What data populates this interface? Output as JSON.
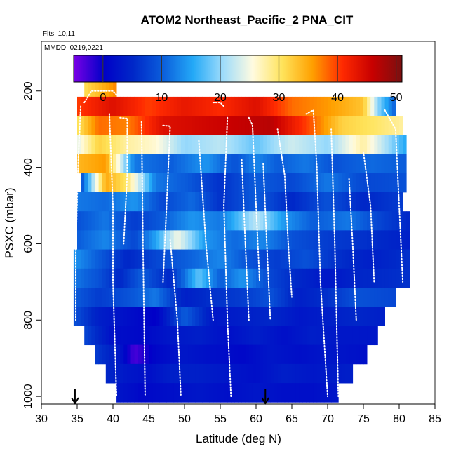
{
  "chart_data": {
    "type": "heatmap",
    "title": "ATOM2 Northeast_Pacific_2 PNA_CIT",
    "flights_note": "Flts: 10,11",
    "dates_note": "MMDD: 0219,0221",
    "xlabel": "Latitude (deg N)",
    "ylabel": "PSXC (mbar)",
    "xlim": [
      30,
      85
    ],
    "ylim": [
      1020,
      70
    ],
    "y_reversed": true,
    "x_ticks": [
      30,
      35,
      40,
      45,
      50,
      55,
      60,
      65,
      70,
      75,
      80,
      85
    ],
    "y_ticks": [
      200,
      400,
      600,
      800,
      1000
    ],
    "colorbar": {
      "range": [
        -5,
        51
      ],
      "ticks": [
        0,
        10,
        20,
        30,
        40,
        50
      ],
      "colors": [
        "#7a00e6",
        "#0000c8",
        "#0028c8",
        "#0b5fdc",
        "#24a9f7",
        "#9edcfb",
        "#fffbe0",
        "#ffe35a",
        "#ffa000",
        "#ff2a00",
        "#c80000",
        "#7a1010"
      ]
    },
    "bin_pressures": [
      190,
      240,
      290,
      340,
      390,
      440,
      490,
      540,
      590,
      640,
      690,
      740,
      790,
      840,
      890,
      940,
      990
    ],
    "bin_extents": [
      [
        36,
        40.5
      ],
      [
        35,
        79.5
      ],
      [
        35,
        80.5
      ],
      [
        35,
        81
      ],
      [
        35,
        81
      ],
      [
        35.5,
        81
      ],
      [
        35,
        80.5
      ],
      [
        35,
        81.5
      ],
      [
        35,
        81.5
      ],
      [
        34.5,
        81.5
      ],
      [
        34.5,
        81.5
      ],
      [
        34.5,
        79.5
      ],
      [
        34.5,
        78
      ],
      [
        36,
        77
      ],
      [
        37.5,
        75.5
      ],
      [
        39,
        73.5
      ],
      [
        40.5,
        71.5
      ]
    ],
    "bin_profiles": [
      [
        [
          36,
          31
        ],
        [
          40.5,
          37
        ]
      ],
      [
        [
          35,
          40
        ],
        [
          40,
          44
        ],
        [
          45,
          40
        ],
        [
          50,
          43
        ],
        [
          55,
          41
        ],
        [
          60,
          44
        ],
        [
          65,
          38
        ],
        [
          70,
          36
        ],
        [
          75,
          33
        ],
        [
          77,
          20
        ],
        [
          79.5,
          10
        ]
      ],
      [
        [
          35,
          30
        ],
        [
          38,
          38
        ],
        [
          42,
          37
        ],
        [
          47,
          44
        ],
        [
          52,
          45
        ],
        [
          57,
          46
        ],
        [
          62,
          47
        ],
        [
          67,
          40
        ],
        [
          72,
          32
        ],
        [
          77,
          30
        ],
        [
          80.5,
          28
        ]
      ],
      [
        [
          35,
          24
        ],
        [
          38,
          32
        ],
        [
          42,
          28
        ],
        [
          46,
          26
        ],
        [
          50,
          20
        ],
        [
          55,
          22
        ],
        [
          60,
          18
        ],
        [
          65,
          23
        ],
        [
          70,
          20
        ],
        [
          75,
          28
        ],
        [
          81,
          15
        ]
      ],
      [
        [
          35,
          34
        ],
        [
          39,
          36
        ],
        [
          43,
          12
        ],
        [
          48,
          10
        ],
        [
          53,
          14
        ],
        [
          57,
          9
        ],
        [
          60,
          13
        ],
        [
          63,
          10
        ],
        [
          67,
          12
        ],
        [
          71,
          9
        ],
        [
          76,
          11
        ],
        [
          81,
          10
        ]
      ],
      [
        [
          35.5,
          8
        ],
        [
          39,
          35
        ],
        [
          42,
          30
        ],
        [
          46,
          12
        ],
        [
          50,
          10
        ],
        [
          55,
          6
        ],
        [
          60,
          10
        ],
        [
          65,
          8
        ],
        [
          70,
          12
        ],
        [
          75,
          8
        ],
        [
          81,
          9
        ]
      ],
      [
        [
          35,
          12
        ],
        [
          39,
          11
        ],
        [
          43,
          14
        ],
        [
          47,
          8
        ],
        [
          51,
          11
        ],
        [
          55,
          6
        ],
        [
          60,
          10
        ],
        [
          65,
          5
        ],
        [
          70,
          9
        ],
        [
          75,
          5
        ],
        [
          80.5,
          7
        ]
      ],
      [
        [
          35,
          9
        ],
        [
          39,
          12
        ],
        [
          43,
          7
        ],
        [
          47,
          10
        ],
        [
          51,
          14
        ],
        [
          55,
          12
        ],
        [
          60,
          22
        ],
        [
          64,
          14
        ],
        [
          68,
          10
        ],
        [
          73,
          12
        ],
        [
          77,
          8
        ],
        [
          81.5,
          5
        ]
      ],
      [
        [
          35,
          10
        ],
        [
          39,
          13
        ],
        [
          43,
          8
        ],
        [
          46,
          15
        ],
        [
          49,
          25
        ],
        [
          53,
          14
        ],
        [
          57,
          11
        ],
        [
          61,
          13
        ],
        [
          65,
          9
        ],
        [
          70,
          7
        ],
        [
          75,
          6
        ],
        [
          81.5,
          4
        ]
      ],
      [
        [
          34.5,
          14
        ],
        [
          38,
          10
        ],
        [
          42,
          5
        ],
        [
          46,
          8
        ],
        [
          50,
          10
        ],
        [
          55,
          13
        ],
        [
          59,
          9
        ],
        [
          63,
          7
        ],
        [
          67,
          9
        ],
        [
          71,
          6
        ],
        [
          76,
          4
        ],
        [
          81.5,
          6
        ]
      ],
      [
        [
          34.5,
          12
        ],
        [
          38,
          9
        ],
        [
          41,
          5
        ],
        [
          44,
          10
        ],
        [
          48,
          5
        ],
        [
          52,
          18
        ],
        [
          55,
          10
        ],
        [
          58,
          14
        ],
        [
          62,
          8
        ],
        [
          66,
          5
        ],
        [
          70,
          3
        ],
        [
          75,
          5
        ],
        [
          81.5,
          6
        ]
      ],
      [
        [
          34.5,
          10
        ],
        [
          38,
          7
        ],
        [
          42,
          9
        ],
        [
          46,
          12
        ],
        [
          50,
          4
        ],
        [
          54,
          6
        ],
        [
          58,
          7
        ],
        [
          62,
          9
        ],
        [
          66,
          4
        ],
        [
          70,
          6
        ],
        [
          74,
          9
        ],
        [
          79.5,
          8
        ]
      ],
      [
        [
          34.5,
          9
        ],
        [
          38,
          4
        ],
        [
          42,
          2
        ],
        [
          46,
          0
        ],
        [
          50,
          10
        ],
        [
          54,
          3
        ],
        [
          58,
          4
        ],
        [
          62,
          5
        ],
        [
          66,
          3
        ],
        [
          70,
          4
        ],
        [
          74,
          5
        ],
        [
          78,
          4
        ]
      ],
      [
        [
          36,
          8
        ],
        [
          40,
          2
        ],
        [
          44,
          1
        ],
        [
          48,
          3
        ],
        [
          52,
          4
        ],
        [
          56,
          2
        ],
        [
          60,
          4
        ],
        [
          64,
          2
        ],
        [
          68,
          4
        ],
        [
          72,
          3
        ],
        [
          77,
          3
        ]
      ],
      [
        [
          37.5,
          7
        ],
        [
          41,
          3
        ],
        [
          43,
          -3
        ],
        [
          46,
          1
        ],
        [
          50,
          3
        ],
        [
          54,
          2
        ],
        [
          58,
          1
        ],
        [
          62,
          3
        ],
        [
          66,
          2
        ],
        [
          70,
          3
        ],
        [
          75.5,
          2
        ]
      ],
      [
        [
          39,
          5
        ],
        [
          42,
          3
        ],
        [
          45,
          2
        ],
        [
          48,
          4
        ],
        [
          52,
          4
        ],
        [
          56,
          3
        ],
        [
          60,
          2
        ],
        [
          64,
          4
        ],
        [
          68,
          3
        ],
        [
          73.5,
          4
        ]
      ],
      [
        [
          40.5,
          3
        ],
        [
          44,
          1
        ],
        [
          48,
          2
        ],
        [
          52,
          3
        ],
        [
          56,
          2
        ],
        [
          60,
          3
        ],
        [
          64,
          2
        ],
        [
          68,
          2
        ],
        [
          71.5,
          3
        ]
      ]
    ],
    "flight_tracks": [
      [
        [
          35.5,
          240
        ],
        [
          35.2,
          360
        ],
        [
          35,
          480
        ],
        [
          34.8,
          620
        ],
        [
          34.8,
          800
        ]
      ],
      [
        [
          36,
          230
        ],
        [
          37,
          200
        ],
        [
          40,
          200
        ],
        [
          40.5,
          210
        ]
      ],
      [
        [
          39.5,
          260
        ],
        [
          40,
          500
        ],
        [
          40,
          700
        ],
        [
          40.5,
          1000
        ]
      ],
      [
        [
          41,
          270
        ],
        [
          42,
          272
        ],
        [
          42,
          420
        ],
        [
          41.5,
          600
        ]
      ],
      [
        [
          44,
          280
        ],
        [
          44.2,
          600
        ],
        [
          44.5,
          1000
        ]
      ],
      [
        [
          47,
          290
        ],
        [
          48,
          292
        ],
        [
          47.5,
          500
        ],
        [
          47,
          700
        ]
      ],
      [
        [
          48,
          590
        ],
        [
          49,
          800
        ],
        [
          49.5,
          1000
        ]
      ],
      [
        [
          52,
          330
        ],
        [
          53,
          600
        ],
        [
          54,
          800
        ]
      ],
      [
        [
          54,
          230
        ],
        [
          55,
          230
        ],
        [
          55.5,
          240
        ]
      ],
      [
        [
          56,
          270
        ],
        [
          55.5,
          500
        ],
        [
          56,
          800
        ],
        [
          56.5,
          1000
        ]
      ],
      [
        [
          58,
          380
        ],
        [
          58.5,
          600
        ],
        [
          59,
          800
        ]
      ],
      [
        [
          59,
          270
        ],
        [
          59.5,
          290
        ],
        [
          60,
          500
        ],
        [
          60.5,
          700
        ]
      ],
      [
        [
          61,
          390
        ],
        [
          61.5,
          600
        ],
        [
          62,
          800
        ]
      ],
      [
        [
          63,
          300
        ],
        [
          64,
          420
        ],
        [
          64.5,
          600
        ],
        [
          65,
          740
        ]
      ],
      [
        [
          67,
          260
        ],
        [
          68,
          250
        ],
        [
          68.5,
          400
        ],
        [
          69,
          700
        ],
        [
          70,
          1000
        ]
      ],
      [
        [
          70.5,
          300
        ],
        [
          71,
          600
        ],
        [
          71.5,
          1000
        ]
      ],
      [
        [
          73,
          430
        ],
        [
          73.5,
          600
        ],
        [
          74,
          800
        ]
      ],
      [
        [
          75,
          360
        ],
        [
          76,
          500
        ],
        [
          76.5,
          700
        ]
      ],
      [
        [
          78,
          250
        ],
        [
          79.5,
          300
        ],
        [
          80,
          500
        ],
        [
          80.5,
          700
        ]
      ]
    ],
    "markers": [
      {
        "x": 34.7,
        "label": "down-arrow"
      },
      {
        "x": 61.3,
        "label": "down-arrow"
      }
    ]
  }
}
